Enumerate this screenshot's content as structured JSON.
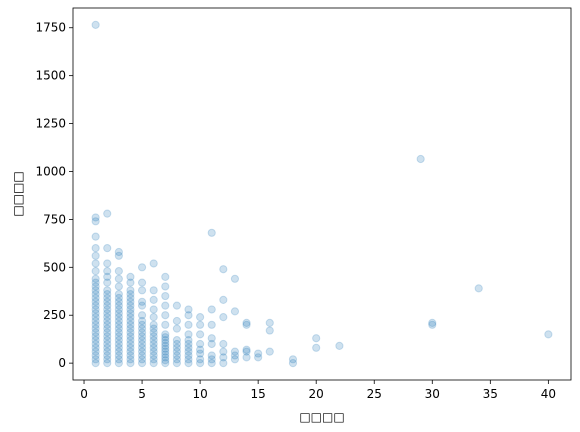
{
  "chart_data": {
    "type": "scatter",
    "xlabel": "□□□□",
    "ylabel": "□□□□",
    "color": "#1f77b4",
    "alpha": 0.22,
    "xlim": [
      -0.95,
      41.95
    ],
    "xticks": [
      0,
      5,
      10,
      15,
      20,
      25,
      30,
      35,
      40
    ],
    "ylim": [
      -88,
      1853
    ],
    "yticks": [
      0,
      250,
      500,
      750,
      1000,
      1250,
      1500,
      1750
    ],
    "x": [
      1,
      1,
      1,
      1,
      1,
      1,
      1,
      1,
      1,
      1,
      1,
      1,
      1,
      1,
      1,
      1,
      1,
      1,
      1,
      1,
      1,
      1,
      1,
      1,
      1,
      1,
      1,
      1,
      1,
      1,
      1,
      2,
      2,
      2,
      2,
      2,
      2,
      2,
      2,
      2,
      2,
      2,
      2,
      2,
      2,
      2,
      2,
      2,
      2,
      2,
      2,
      2,
      2,
      2,
      2,
      2,
      2,
      3,
      3,
      3,
      3,
      3,
      3,
      3,
      3,
      3,
      3,
      3,
      3,
      3,
      3,
      3,
      3,
      3,
      3,
      3,
      3,
      3,
      3,
      3,
      3,
      4,
      4,
      4,
      4,
      4,
      4,
      4,
      4,
      4,
      4,
      4,
      4,
      4,
      4,
      4,
      4,
      4,
      4,
      4,
      4,
      4,
      4,
      5,
      5,
      5,
      5,
      5,
      5,
      5,
      5,
      5,
      5,
      5,
      5,
      5,
      5,
      5,
      5,
      5,
      5,
      6,
      6,
      6,
      6,
      6,
      6,
      6,
      6,
      6,
      6,
      6,
      6,
      6,
      6,
      6,
      6,
      7,
      7,
      7,
      7,
      7,
      7,
      7,
      7,
      7,
      7,
      7,
      7,
      7,
      7,
      7,
      7,
      7,
      8,
      8,
      8,
      8,
      8,
      8,
      8,
      8,
      8,
      8,
      9,
      9,
      9,
      9,
      9,
      9,
      9,
      9,
      9,
      9,
      9,
      10,
      10,
      10,
      10,
      10,
      10,
      10,
      10,
      11,
      11,
      11,
      11,
      11,
      11,
      11,
      11,
      12,
      12,
      12,
      12,
      12,
      12,
      12,
      13,
      13,
      13,
      13,
      13,
      14,
      14,
      14,
      14,
      14,
      15,
      15,
      16,
      16,
      16,
      18,
      18,
      20,
      20,
      22,
      29,
      30,
      30,
      34,
      40
    ],
    "values": [
      0,
      20,
      40,
      60,
      80,
      100,
      120,
      140,
      160,
      180,
      200,
      220,
      240,
      260,
      280,
      300,
      320,
      340,
      360,
      380,
      400,
      420,
      440,
      480,
      520,
      560,
      600,
      660,
      740,
      760,
      1765,
      0,
      20,
      40,
      60,
      80,
      100,
      120,
      140,
      160,
      180,
      200,
      220,
      240,
      260,
      280,
      300,
      320,
      340,
      360,
      380,
      420,
      450,
      480,
      520,
      600,
      780,
      0,
      20,
      40,
      60,
      80,
      100,
      120,
      140,
      160,
      180,
      200,
      220,
      240,
      260,
      280,
      300,
      320,
      340,
      360,
      400,
      440,
      480,
      560,
      580,
      0,
      20,
      40,
      60,
      80,
      100,
      120,
      140,
      160,
      180,
      200,
      220,
      240,
      260,
      280,
      300,
      320,
      340,
      360,
      380,
      420,
      450,
      0,
      20,
      40,
      60,
      80,
      100,
      120,
      140,
      160,
      180,
      200,
      220,
      250,
      300,
      320,
      380,
      420,
      500,
      0,
      20,
      40,
      60,
      80,
      100,
      120,
      140,
      160,
      180,
      200,
      240,
      280,
      330,
      380,
      520,
      0,
      15,
      30,
      45,
      60,
      75,
      90,
      105,
      120,
      135,
      150,
      200,
      250,
      300,
      350,
      400,
      450,
      0,
      20,
      40,
      60,
      80,
      100,
      120,
      180,
      220,
      300,
      0,
      20,
      40,
      60,
      80,
      100,
      120,
      150,
      200,
      250,
      280,
      0,
      20,
      50,
      70,
      100,
      150,
      200,
      240,
      0,
      20,
      40,
      100,
      130,
      200,
      280,
      680,
      0,
      30,
      60,
      100,
      240,
      330,
      490,
      20,
      40,
      60,
      270,
      440,
      30,
      60,
      70,
      200,
      210,
      30,
      50,
      60,
      170,
      210,
      0,
      20,
      80,
      130,
      90,
      1065,
      200,
      210,
      390,
      150
    ]
  }
}
